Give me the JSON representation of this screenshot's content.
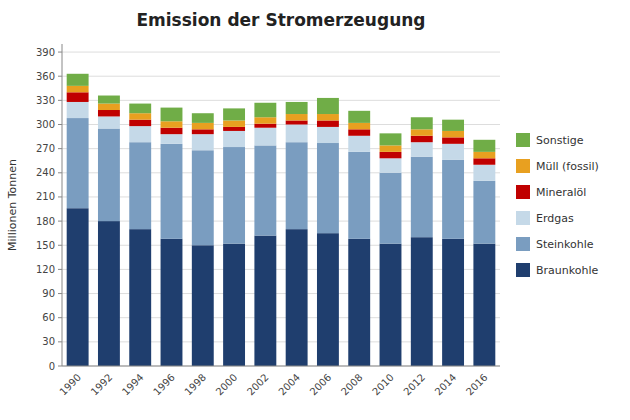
{
  "chart_data": {
    "type": "bar",
    "stacked": true,
    "title": "Emission der Stromerzeugung",
    "ylabel": "Millionen Tonnen",
    "categories": [
      "1990",
      "1992",
      "1994",
      "1996",
      "1998",
      "2000",
      "2002",
      "2004",
      "2006",
      "2008",
      "2010",
      "2012",
      "2014",
      "2016"
    ],
    "series": [
      {
        "name": "Braunkohle",
        "color": "#1F3E6E",
        "values": [
          196,
          180,
          170,
          158,
          150,
          152,
          162,
          170,
          165,
          158,
          152,
          160,
          158,
          152
        ]
      },
      {
        "name": "Steinkohle",
        "color": "#7A9DC0",
        "values": [
          112,
          115,
          108,
          118,
          118,
          120,
          112,
          108,
          112,
          108,
          88,
          100,
          98,
          78
        ]
      },
      {
        "name": "Erdgas",
        "color": "#C5D9E8",
        "values": [
          20,
          15,
          20,
          12,
          20,
          20,
          22,
          22,
          20,
          20,
          18,
          18,
          20,
          20
        ]
      },
      {
        "name": "Mineralöl",
        "color": "#C00000",
        "values": [
          12,
          8,
          8,
          8,
          6,
          5,
          5,
          5,
          8,
          8,
          8,
          8,
          8,
          8
        ]
      },
      {
        "name": "Müll (fossil)",
        "color": "#E8A020",
        "values": [
          8,
          8,
          8,
          8,
          8,
          8,
          8,
          8,
          8,
          8,
          8,
          8,
          8,
          8
        ]
      },
      {
        "name": "Sonstige",
        "color": "#70AD47",
        "values": [
          15,
          10,
          12,
          17,
          12,
          15,
          18,
          15,
          20,
          15,
          15,
          15,
          14,
          15
        ]
      }
    ],
    "ylim": [
      0,
      400
    ],
    "yticks": [
      0,
      30,
      60,
      90,
      120,
      150,
      180,
      210,
      240,
      270,
      300,
      330,
      360,
      390
    ],
    "grid": true,
    "legend": "right"
  }
}
